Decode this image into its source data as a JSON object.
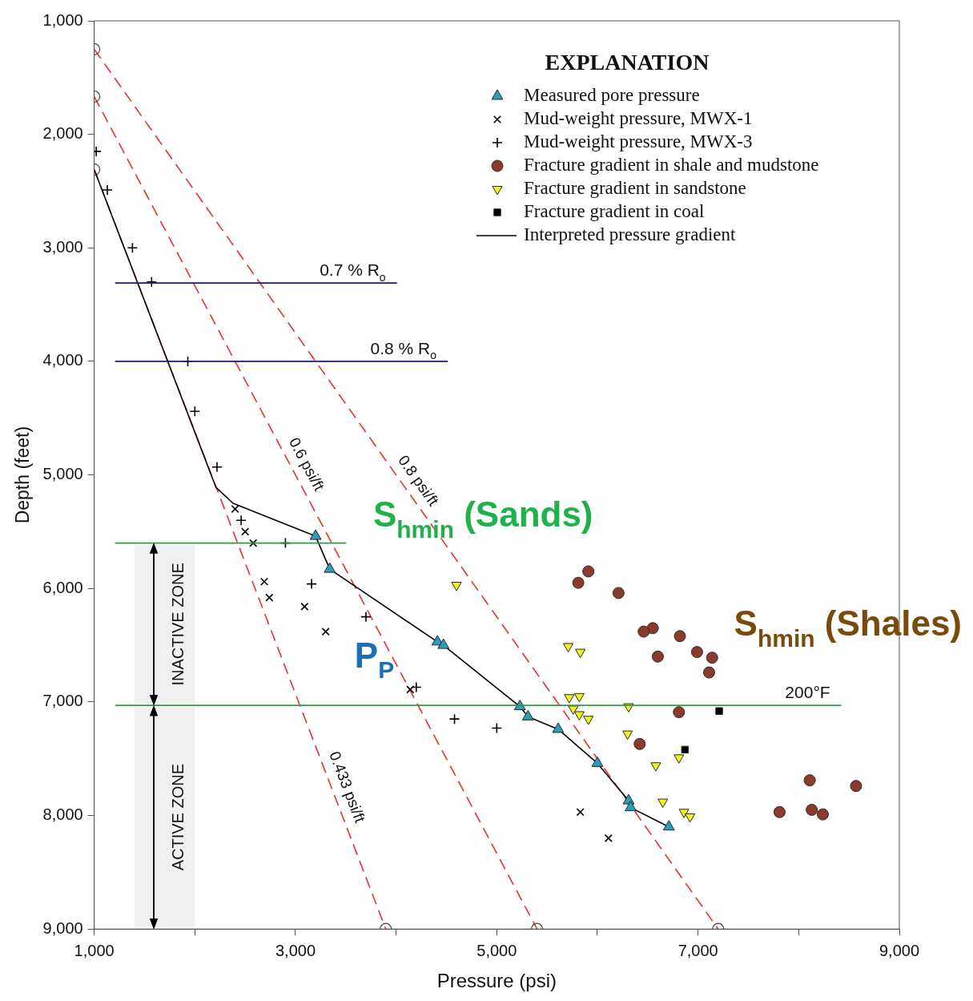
{
  "chart_data": {
    "type": "scatter",
    "xlabel": "Pressure (psi)",
    "ylabel": "Depth (feet)",
    "legend_title": "EXPLANATION",
    "legend": "top right",
    "xlim": [
      1000,
      9000
    ],
    "ylim": [
      9000,
      1000
    ],
    "xticks": [
      {
        "value": 1000,
        "label": "1,000"
      },
      {
        "value": 2000,
        "label": null
      },
      {
        "value": 3000,
        "label": "3,000"
      },
      {
        "value": 4000,
        "label": null
      },
      {
        "value": 5000,
        "label": "5,000"
      },
      {
        "value": 6000,
        "label": null
      },
      {
        "value": 7000,
        "label": "7,000"
      },
      {
        "value": 8000,
        "label": null
      },
      {
        "value": 9000,
        "label": "9,000"
      }
    ],
    "yticks": [
      {
        "value": 1000,
        "label": "1,000"
      },
      {
        "value": 2000,
        "label": "2,000"
      },
      {
        "value": 3000,
        "label": "3,000"
      },
      {
        "value": 4000,
        "label": "4,000"
      },
      {
        "value": 5000,
        "label": "5,000"
      },
      {
        "value": 6000,
        "label": "6,000"
      },
      {
        "value": 7000,
        "label": "7,000"
      },
      {
        "value": 8000,
        "label": "8,000"
      },
      {
        "value": 9000,
        "label": "9,000"
      }
    ],
    "series": [
      {
        "type": "scatter",
        "name": "Measured pore pressure",
        "color": "#2b9cb9",
        "marker": "triangle",
        "x": [
          3200,
          3340,
          4410,
          4470,
          5230,
          5310,
          5610,
          6000,
          6310,
          6330,
          6710
        ],
        "values": [
          5540,
          5830,
          6470,
          6500,
          7040,
          7130,
          7240,
          7540,
          7870,
          7930,
          8100
        ]
      },
      {
        "type": "scatter",
        "name": "Mud-weight pressure, MWX-1",
        "color": "#000000",
        "marker": "x",
        "x": [
          2400,
          2500,
          2580,
          2690,
          2740,
          3090,
          3300,
          4140,
          5830,
          6110
        ],
        "values": [
          5300,
          5500,
          5600,
          5940,
          6080,
          6160,
          6380,
          6890,
          7970,
          8200
        ]
      },
      {
        "type": "scatter",
        "name": "Mud-weight pressure, MWX-3",
        "color": "#000000",
        "marker": "cross",
        "x": [
          1020,
          1130,
          1380,
          1570,
          1930,
          2000,
          2220,
          2460,
          2900,
          3160,
          3700,
          4200,
          4580,
          5000
        ],
        "values": [
          2150,
          2490,
          3000,
          3300,
          4000,
          4440,
          4930,
          5400,
          5600,
          5960,
          6250,
          6870,
          7150,
          7230
        ]
      },
      {
        "type": "scatter",
        "name": "Fracture gradient in shale and mudstone",
        "color": "#8b3a2b",
        "marker": "circle",
        "x": [
          5910,
          5810,
          6210,
          6550,
          6460,
          6820,
          6600,
          6990,
          7140,
          7110,
          6810,
          6420,
          8110,
          8570,
          7810,
          8130,
          8240
        ],
        "values": [
          5850,
          5950,
          6040,
          6350,
          6380,
          6420,
          6600,
          6560,
          6610,
          6740,
          7090,
          7370,
          7690,
          7740,
          7970,
          7950,
          7990
        ]
      },
      {
        "type": "scatter",
        "name": "Fracture gradient in sandstone",
        "color": "#f2f21c",
        "marker": "triangle_down",
        "x": [
          4600,
          5710,
          5830,
          5720,
          5820,
          5760,
          5820,
          5910,
          6310,
          6300,
          6580,
          6810,
          6650,
          6860,
          6920
        ],
        "values": [
          5970,
          6510,
          6560,
          6960,
          6950,
          7060,
          7110,
          7150,
          7040,
          7280,
          7560,
          7490,
          7880,
          7970,
          8010
        ]
      },
      {
        "type": "scatter",
        "name": "Fracture gradient in coal",
        "color": "#000000",
        "marker": "square",
        "x": [
          7210,
          6870
        ],
        "values": [
          7080,
          7420
        ]
      },
      {
        "type": "line",
        "name": "Interpreted pressure gradient",
        "color": "#000000",
        "marker": "none",
        "line_style": "solid",
        "x": [
          1000,
          2210,
          2380,
          3200,
          3340,
          4410,
          4470,
          5230,
          5310,
          5610,
          6000,
          6310,
          6330,
          6710
        ],
        "values": [
          2310,
          5110,
          5250,
          5540,
          5830,
          6470,
          6500,
          7040,
          7130,
          7240,
          7540,
          7870,
          7930,
          8100
        ]
      },
      {
        "type": "line",
        "name": "0.433 psi/ft",
        "color": "#e8312f",
        "marker": "circle",
        "line_style": "dashed",
        "x": [
          1000,
          3897
        ],
        "values": [
          2310,
          9000
        ]
      },
      {
        "type": "line",
        "name": "0.6 psi/ft",
        "color": "#e8312f",
        "marker": "circle",
        "line_style": "dashed",
        "x": [
          1000,
          5400
        ],
        "values": [
          1667,
          9000
        ]
      },
      {
        "type": "line",
        "name": "0.8 psi/ft",
        "color": "#e8312f",
        "marker": "circle",
        "line_style": "dashed",
        "x": [
          1000,
          7200
        ],
        "values": [
          1250,
          9000
        ]
      }
    ],
    "ref_lines": [
      {
        "axis": "y",
        "value": 3310,
        "label": "0.7 % R$_{o}$",
        "color": "#1a1a70"
      },
      {
        "axis": "y",
        "value": 4000,
        "label": "0.8 % R$_{o}$",
        "color": "#1a1a70"
      },
      {
        "axis": "y",
        "value": 5600,
        "color": "#2e9a4a"
      },
      {
        "axis": "y",
        "value": 7030,
        "label": "200°F",
        "color": "#2e9a4a"
      }
    ],
    "bands": [
      {
        "axis": "y",
        "from": 5600,
        "to": 7030,
        "label": "INACTIVE ZONE"
      },
      {
        "axis": "y",
        "from": 7030,
        "to": 9000,
        "label": "ACTIVE ZONE"
      }
    ],
    "annotations": [
      "S$_{hmin}$ (Sands)",
      "P$_{P}$",
      "S$_{hmin}$ (Shales)"
    ]
  }
}
